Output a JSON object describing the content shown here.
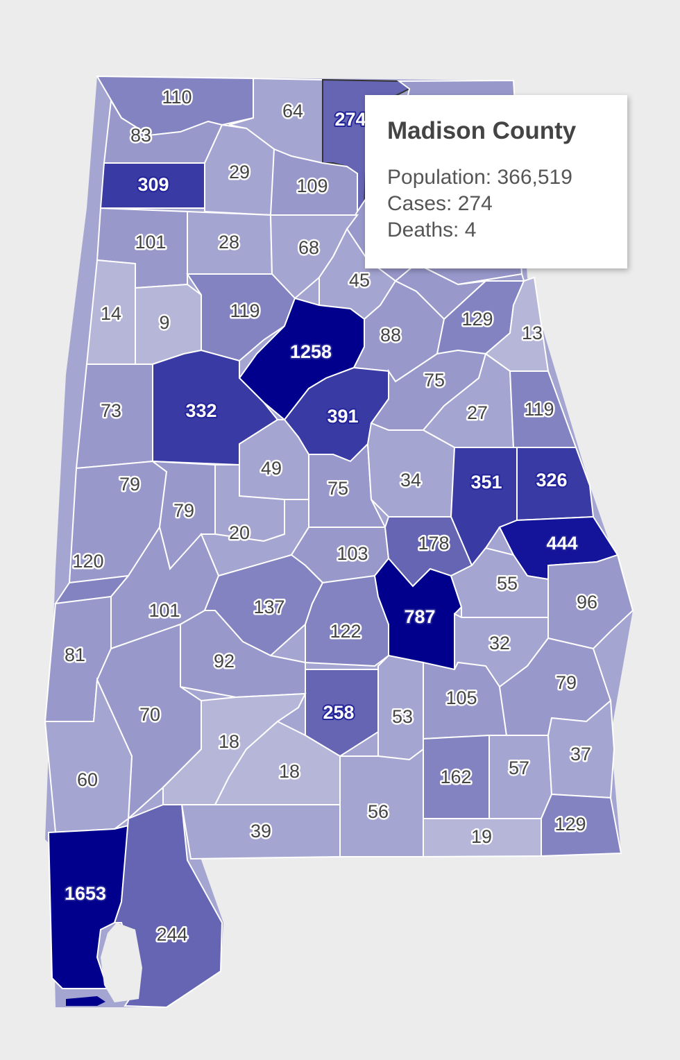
{
  "colors": {
    "scale": [
      "#b6b6d9",
      "#a5a5d2",
      "#9898cb",
      "#8383c1",
      "#6565b4",
      "#3a3aa5",
      "#14149a",
      "#00008c"
    ],
    "border": "#ffffff",
    "background": "#ececec"
  },
  "counties": [
    {
      "id": "lauderdale",
      "cases": 110
    },
    {
      "id": "colbert",
      "cases": 83
    },
    {
      "id": "limestone",
      "cases": 64
    },
    {
      "id": "madison",
      "cases": 274,
      "selected": true
    },
    {
      "id": "jackson",
      "cases": null
    },
    {
      "id": "franklin",
      "cases": 309
    },
    {
      "id": "lawrence",
      "cases": 29
    },
    {
      "id": "morgan",
      "cases": 109
    },
    {
      "id": "marshall",
      "cases": null
    },
    {
      "id": "dekalb",
      "cases": null
    },
    {
      "id": "marion",
      "cases": 101
    },
    {
      "id": "winston",
      "cases": 28
    },
    {
      "id": "cullman",
      "cases": 68
    },
    {
      "id": "blount",
      "cases": 45
    },
    {
      "id": "etowah",
      "cases": null
    },
    {
      "id": "cherokee",
      "cases": null
    },
    {
      "id": "lamar",
      "cases": 14
    },
    {
      "id": "fayette",
      "cases": 9
    },
    {
      "id": "walker",
      "cases": 119
    },
    {
      "id": "jefferson",
      "cases": 1258
    },
    {
      "id": "stclair",
      "cases": 88
    },
    {
      "id": "calhoun",
      "cases": 129
    },
    {
      "id": "cleburne",
      "cases": 13
    },
    {
      "id": "pickens",
      "cases": 73
    },
    {
      "id": "tuscaloosa",
      "cases": 332
    },
    {
      "id": "shelby",
      "cases": 391
    },
    {
      "id": "talladega",
      "cases": 75
    },
    {
      "id": "clay",
      "cases": 27
    },
    {
      "id": "randolph",
      "cases": 119
    },
    {
      "id": "sumter",
      "cases": 79
    },
    {
      "id": "greene",
      "cases": 79
    },
    {
      "id": "bibb",
      "cases": 49
    },
    {
      "id": "chilton",
      "cases": 75
    },
    {
      "id": "coosa",
      "cases": 34
    },
    {
      "id": "tallapoosa",
      "cases": 351
    },
    {
      "id": "chambers",
      "cases": 326
    },
    {
      "id": "hale",
      "cases": 20
    },
    {
      "id": "perry",
      "cases": 20
    },
    {
      "id": "autauga",
      "cases": 103
    },
    {
      "id": "elmore",
      "cases": 178
    },
    {
      "id": "lee",
      "cases": 444
    },
    {
      "id": "choctaw",
      "cases": 120
    },
    {
      "id": "marengo",
      "cases": 101
    },
    {
      "id": "dallas",
      "cases": 137
    },
    {
      "id": "lowndes",
      "cases": 122
    },
    {
      "id": "montgomery",
      "cases": 787
    },
    {
      "id": "macon",
      "cases": 55
    },
    {
      "id": "russell",
      "cases": 96
    },
    {
      "id": "washington",
      "cases": 81
    },
    {
      "id": "wilcox",
      "cases": 92
    },
    {
      "id": "bullock",
      "cases": 32
    },
    {
      "id": "clarke",
      "cases": 70
    },
    {
      "id": "butler",
      "cases": 258
    },
    {
      "id": "crenshaw",
      "cases": 53
    },
    {
      "id": "pike",
      "cases": 105
    },
    {
      "id": "barbour",
      "cases": 79
    },
    {
      "id": "monroe",
      "cases": 18
    },
    {
      "id": "conecuh",
      "cases": 18
    },
    {
      "id": "mobile_n",
      "cases": 60
    },
    {
      "id": "coffee",
      "cases": 162
    },
    {
      "id": "dale",
      "cases": 57
    },
    {
      "id": "henry",
      "cases": 37
    },
    {
      "id": "escambia",
      "cases": 39
    },
    {
      "id": "covington",
      "cases": 56
    },
    {
      "id": "geneva",
      "cases": 19
    },
    {
      "id": "houston",
      "cases": 129
    },
    {
      "id": "mobile",
      "cases": 1653
    },
    {
      "id": "baldwin",
      "cases": 244
    }
  ],
  "tooltip": {
    "title": "Madison County",
    "population": "Population: 366,519",
    "cases": "Cases: 274",
    "deaths": "Deaths: 4"
  }
}
